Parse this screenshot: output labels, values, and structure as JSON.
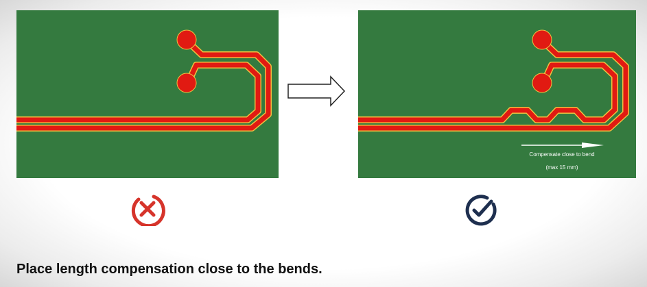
{
  "colors": {
    "board": "#347a3f",
    "trace": "#e11a12",
    "trace_edge": "#f0c040",
    "bad": "#d6342b",
    "good": "#1e2f4f"
  },
  "right_panel": {
    "note_line1": "Compensate close to bend",
    "note_line2": "(max 15 mm)"
  },
  "icons": {
    "bad": "x-circle-icon",
    "good": "check-circle-icon",
    "transition": "right-arrow-icon"
  },
  "caption": "Place length compensation close to the bends."
}
